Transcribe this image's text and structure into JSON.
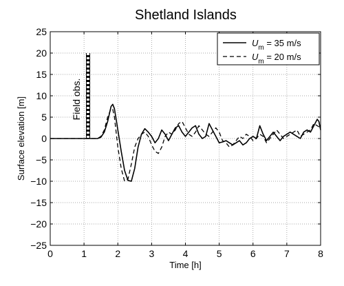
{
  "chart_data": {
    "type": "line",
    "title": "Shetland Islands",
    "xlabel": "Time [h]",
    "ylabel": "Surface elevation [m]",
    "xlim": [
      0,
      8
    ],
    "ylim": [
      -25,
      25
    ],
    "xticks": [
      0,
      1,
      2,
      3,
      4,
      5,
      6,
      7,
      8
    ],
    "yticks": [
      -25,
      -20,
      -15,
      -10,
      -5,
      0,
      5,
      10,
      15,
      20,
      25
    ],
    "grid": true,
    "legend_position": "top-right",
    "annotation": {
      "text": "Field obs.",
      "x": 1.12,
      "y_range": [
        0,
        20
      ]
    },
    "series": [
      {
        "name": "U_m = 35 m/s",
        "legend_main": "U",
        "legend_sub": "m",
        "legend_suffix": " = 35 m/s",
        "style": "solid",
        "x": [
          0,
          1.4,
          1.5,
          1.6,
          1.7,
          1.8,
          1.85,
          1.9,
          2.0,
          2.1,
          2.2,
          2.3,
          2.4,
          2.5,
          2.6,
          2.7,
          2.8,
          2.9,
          3.0,
          3.1,
          3.2,
          3.3,
          3.4,
          3.5,
          3.6,
          3.7,
          3.8,
          3.9,
          4.0,
          4.1,
          4.2,
          4.3,
          4.4,
          4.5,
          4.6,
          4.7,
          4.8,
          4.9,
          5.0,
          5.1,
          5.2,
          5.3,
          5.4,
          5.5,
          5.6,
          5.7,
          5.8,
          5.9,
          6.0,
          6.1,
          6.2,
          6.3,
          6.4,
          6.5,
          6.6,
          6.7,
          6.8,
          6.9,
          7.0,
          7.1,
          7.2,
          7.3,
          7.4,
          7.5,
          7.6,
          7.7,
          7.8,
          7.9,
          7.95,
          8.0
        ],
        "y": [
          0,
          0,
          0.3,
          1.5,
          4.0,
          7.5,
          8.0,
          7.0,
          2.0,
          -3.0,
          -7.5,
          -9.8,
          -10.0,
          -7.0,
          -2.0,
          1.0,
          2.3,
          1.5,
          0.5,
          -1.0,
          0.0,
          2.0,
          1.0,
          -0.5,
          1.0,
          2.5,
          3.0,
          1.5,
          0.5,
          1.5,
          2.5,
          3.0,
          1.0,
          0.0,
          0.5,
          3.5,
          2.0,
          0.5,
          -1.0,
          -0.8,
          -0.5,
          -1.0,
          -1.5,
          -1.0,
          -0.5,
          -1.5,
          -1.0,
          0.0,
          0.5,
          0.0,
          3.0,
          1.0,
          -0.5,
          0.5,
          1.5,
          0.5,
          -0.5,
          0.5,
          1.0,
          1.5,
          1.0,
          0.5,
          0.0,
          1.5,
          2.0,
          1.5,
          3.0,
          4.5,
          4.0,
          2.0
        ]
      },
      {
        "name": "U_m = 20 m/s",
        "legend_main": "U",
        "legend_sub": "m",
        "legend_suffix": " = 20 m/s",
        "style": "dashed",
        "x": [
          0,
          1.4,
          1.5,
          1.6,
          1.7,
          1.8,
          1.85,
          1.9,
          2.0,
          2.1,
          2.2,
          2.3,
          2.4,
          2.5,
          2.6,
          2.7,
          2.8,
          2.9,
          3.0,
          3.1,
          3.2,
          3.3,
          3.4,
          3.5,
          3.6,
          3.7,
          3.8,
          3.9,
          4.0,
          4.1,
          4.2,
          4.3,
          4.4,
          4.5,
          4.6,
          4.7,
          4.8,
          4.9,
          5.0,
          5.1,
          5.2,
          5.3,
          5.4,
          5.5,
          5.6,
          5.7,
          5.8,
          5.9,
          6.0,
          6.1,
          6.2,
          6.3,
          6.4,
          6.5,
          6.6,
          6.7,
          6.8,
          6.9,
          7.0,
          7.1,
          7.2,
          7.3,
          7.4,
          7.5,
          7.6,
          7.7,
          7.8,
          7.9,
          8.0
        ],
        "y": [
          0,
          0,
          0.5,
          2.0,
          5.0,
          7.0,
          6.8,
          5.0,
          -2.0,
          -7.0,
          -10.0,
          -9.5,
          -6.0,
          -2.0,
          0.0,
          1.0,
          1.5,
          0.5,
          -1.5,
          -3.0,
          -3.5,
          -2.0,
          0.5,
          1.5,
          1.0,
          2.0,
          3.5,
          4.0,
          2.5,
          1.0,
          0.5,
          1.5,
          3.0,
          2.0,
          1.0,
          0.5,
          1.5,
          2.5,
          1.5,
          -0.5,
          -1.0,
          -2.0,
          -1.5,
          -0.5,
          0.5,
          0.0,
          1.0,
          0.5,
          -0.5,
          0.0,
          1.0,
          0.5,
          -1.0,
          0.0,
          1.0,
          2.0,
          1.0,
          0.0,
          0.5,
          1.0,
          1.5,
          2.0,
          0.5,
          1.0,
          1.5,
          2.0,
          3.5,
          3.0,
          2.5
        ]
      }
    ]
  }
}
